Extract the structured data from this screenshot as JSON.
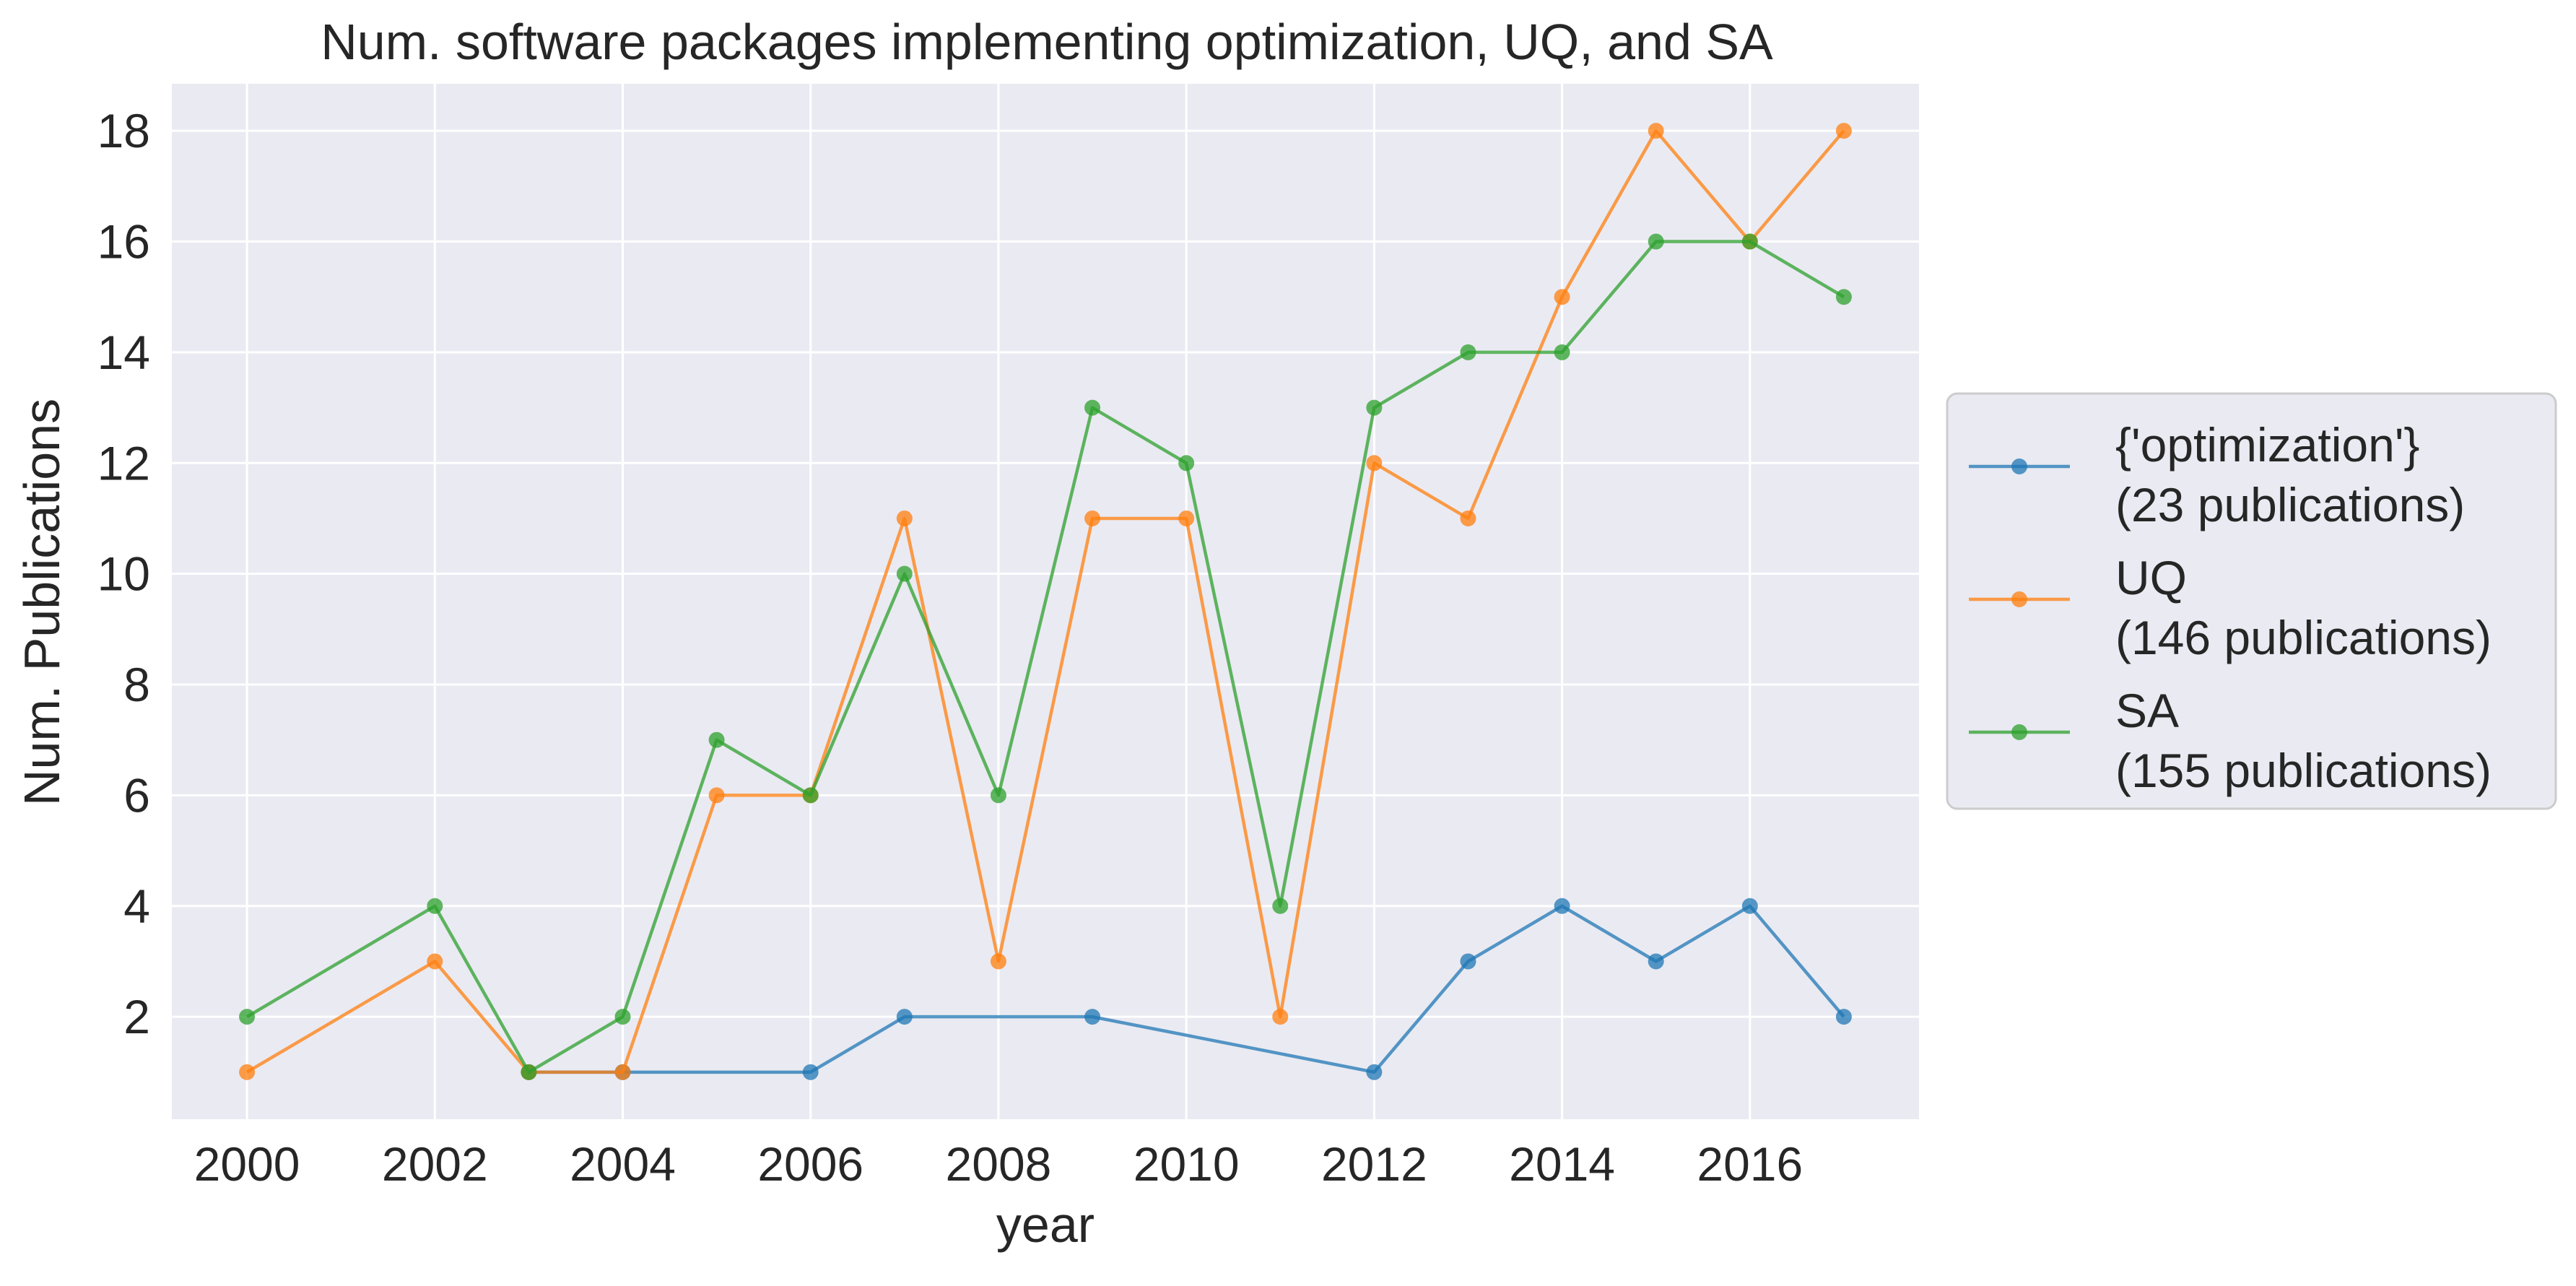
{
  "chart_data": {
    "type": "line",
    "title": "Num. software packages implementing optimization, UQ, and SA",
    "xlabel": "year",
    "ylabel": "Num. Publications",
    "xlim": [
      1999.2,
      2017.8
    ],
    "ylim": [
      0.15,
      18.85
    ],
    "xticks": [
      2000,
      2002,
      2004,
      2006,
      2008,
      2010,
      2012,
      2014,
      2016
    ],
    "yticks": [
      2,
      4,
      6,
      8,
      10,
      12,
      14,
      16,
      18
    ],
    "grid": true,
    "legend_position": "right, outside plot",
    "series": [
      {
        "name": "{'optimization'}",
        "legend_subtitle": "(23 publications)",
        "color": "#1f77b4",
        "x": [
          2003,
          2004,
          2006,
          2007,
          2009,
          2012,
          2013,
          2014,
          2015,
          2016,
          2017
        ],
        "values": [
          1,
          1,
          1,
          2,
          2,
          1,
          3,
          4,
          3,
          4,
          2
        ]
      },
      {
        "name": "UQ",
        "legend_subtitle": "(146 publications)",
        "color": "#ff7f0e",
        "x": [
          2000,
          2002,
          2003,
          2004,
          2005,
          2006,
          2007,
          2008,
          2009,
          2010,
          2011,
          2012,
          2013,
          2014,
          2015,
          2016,
          2017
        ],
        "values": [
          1,
          3,
          1,
          1,
          6,
          6,
          11,
          3,
          11,
          11,
          2,
          12,
          11,
          15,
          18,
          16,
          18
        ]
      },
      {
        "name": "SA",
        "legend_subtitle": "(155 publications)",
        "color": "#2ca02c",
        "x": [
          2000,
          2002,
          2003,
          2004,
          2005,
          2006,
          2007,
          2008,
          2009,
          2010,
          2011,
          2012,
          2013,
          2014,
          2015,
          2016,
          2017
        ],
        "values": [
          2,
          4,
          1,
          2,
          7,
          6,
          10,
          6,
          13,
          12,
          4,
          13,
          14,
          14,
          16,
          16,
          15
        ]
      }
    ],
    "colors": {
      "plot_background": "#eaeaf2",
      "grid": "#ffffff",
      "text": "#262626",
      "legend_background": "#eaeaf2",
      "legend_border": "#cccccc"
    }
  }
}
